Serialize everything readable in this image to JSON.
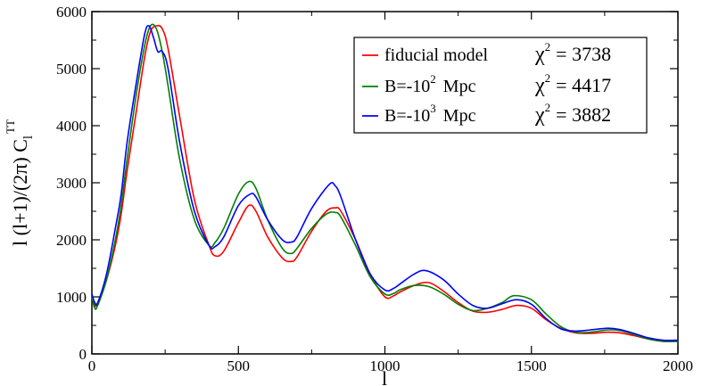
{
  "chart_data": {
    "type": "line",
    "xlabel": "l",
    "ylabel": {
      "prefix": "l (l+1)/(2",
      "pi": "π",
      "suffix": ") C",
      "sub": "l",
      "sup": "TT"
    },
    "xlim": [
      0,
      2000
    ],
    "ylim": [
      0,
      6000
    ],
    "xticks": [
      0,
      500,
      1000,
      1500,
      2000
    ],
    "yticks": [
      0,
      1000,
      2000,
      3000,
      4000,
      5000,
      6000
    ],
    "legend_position": "top-right",
    "series": [
      {
        "name": "fiducial model",
        "legend_parts": {
          "main": "fiducial model",
          "sup": "",
          "after": ""
        },
        "chi2_value": "3738",
        "color": "#ff0000",
        "x": [
          0,
          10,
          20,
          50,
          80,
          100,
          120,
          150,
          180,
          200,
          220,
          240,
          260,
          300,
          350,
          400,
          420,
          450,
          500,
          535,
          560,
          600,
          650,
          680,
          700,
          750,
          800,
          830,
          850,
          900,
          950,
          1000,
          1030,
          1050,
          1100,
          1150,
          1200,
          1250,
          1300,
          1350,
          1400,
          1450,
          1500,
          1550,
          1600,
          1650,
          1700,
          1760,
          1800,
          1850,
          1900,
          1950,
          2000
        ],
        "y": [
          1050,
          850,
          900,
          1300,
          1900,
          2450,
          3200,
          4200,
          5200,
          5650,
          5750,
          5700,
          5350,
          4150,
          2700,
          1900,
          1720,
          1800,
          2300,
          2600,
          2500,
          2050,
          1680,
          1620,
          1700,
          2150,
          2500,
          2560,
          2500,
          2000,
          1400,
          1000,
          1020,
          1080,
          1200,
          1250,
          1100,
          900,
          750,
          730,
          780,
          850,
          800,
          600,
          450,
          370,
          360,
          380,
          370,
          320,
          260,
          220,
          220
        ]
      },
      {
        "name": "B=-10^2 Mpc",
        "legend_parts": {
          "main": "B=-10",
          "sup": "2",
          "after": "Mpc"
        },
        "chi2_value": "4417",
        "color": "#008000",
        "x": [
          0,
          10,
          20,
          50,
          80,
          100,
          120,
          150,
          180,
          200,
          220,
          240,
          260,
          300,
          350,
          400,
          420,
          450,
          500,
          535,
          560,
          600,
          650,
          680,
          700,
          750,
          800,
          830,
          850,
          900,
          950,
          1000,
          1030,
          1050,
          1100,
          1150,
          1200,
          1250,
          1300,
          1350,
          1400,
          1440,
          1500,
          1550,
          1600,
          1650,
          1700,
          1760,
          1800,
          1850,
          1900,
          1950,
          2000
        ],
        "y": [
          1000,
          800,
          850,
          1300,
          2000,
          2600,
          3400,
          4500,
          5400,
          5750,
          5700,
          5300,
          4700,
          3400,
          2350,
          1900,
          1950,
          2200,
          2800,
          3020,
          2900,
          2350,
          1850,
          1760,
          1850,
          2200,
          2450,
          2480,
          2400,
          1900,
          1350,
          1050,
          1060,
          1120,
          1200,
          1180,
          1050,
          870,
          760,
          800,
          900,
          1020,
          950,
          700,
          480,
          380,
          380,
          420,
          410,
          340,
          260,
          220,
          220
        ]
      },
      {
        "name": "B=-10^3 Mpc",
        "legend_parts": {
          "main": "B=-10",
          "sup": "3",
          "after": "Mpc"
        },
        "chi2_value": "3882",
        "color": "#0000ff",
        "x": [
          0,
          10,
          20,
          50,
          80,
          100,
          120,
          150,
          180,
          195,
          210,
          225,
          240,
          260,
          300,
          350,
          400,
          420,
          450,
          500,
          540,
          560,
          600,
          650,
          680,
          700,
          750,
          810,
          830,
          850,
          900,
          950,
          1000,
          1030,
          1050,
          1100,
          1140,
          1200,
          1250,
          1300,
          1350,
          1400,
          1450,
          1500,
          1550,
          1600,
          1650,
          1700,
          1760,
          1800,
          1850,
          1900,
          1950,
          2000
        ],
        "y": [
          1050,
          900,
          900,
          1400,
          2200,
          2800,
          3700,
          4700,
          5600,
          5750,
          5550,
          5300,
          5300,
          5000,
          3700,
          2500,
          1900,
          1880,
          2050,
          2600,
          2800,
          2750,
          2350,
          2000,
          1960,
          2050,
          2550,
          2970,
          2950,
          2750,
          2000,
          1400,
          1120,
          1150,
          1220,
          1400,
          1460,
          1300,
          1050,
          850,
          800,
          880,
          950,
          870,
          620,
          440,
          400,
          420,
          450,
          430,
          360,
          280,
          240,
          240
        ]
      }
    ]
  }
}
